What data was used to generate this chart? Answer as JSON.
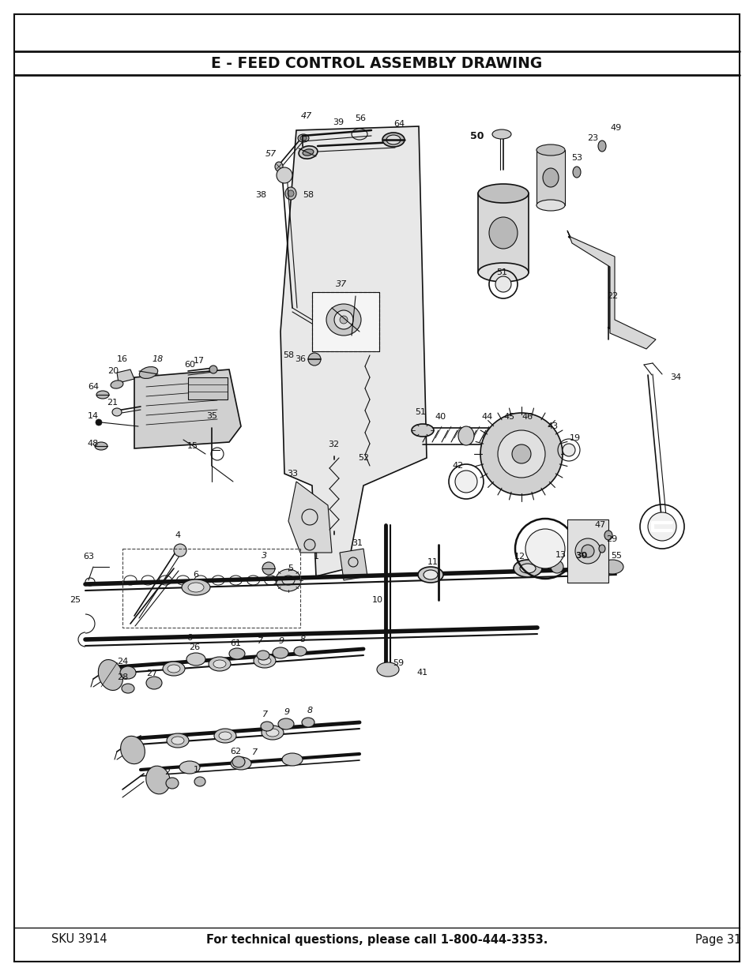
{
  "title": "E - FEED CONTROL ASSEMBLY DRAWING",
  "footer_left": "SKU 3914",
  "footer_center": "For technical questions, please call 1-800-444-3353.",
  "footer_right": "Page 31",
  "bg_color": "#ffffff",
  "title_fontsize": 13.5,
  "footer_fontsize": 10.5,
  "fig_width": 9.54,
  "fig_height": 12.35,
  "dpi": 100
}
